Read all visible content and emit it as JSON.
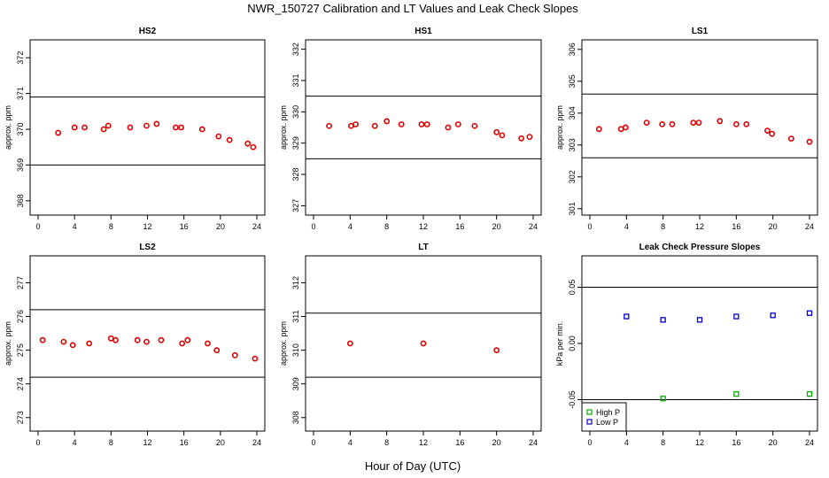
{
  "figure": {
    "title": "NWR_150727  Calibration and LT Values and Leak Check Slopes",
    "xlabel": "Hour of Day (UTC)",
    "point_color": "#e00000",
    "high_color": "#00b000",
    "low_color": "#0000d0"
  },
  "chart_data": [
    {
      "type": "scatter",
      "title": "HS2",
      "ylabel": "approx. ppm",
      "xlim": [
        0,
        24
      ],
      "ylim": [
        367.6,
        372.5
      ],
      "xticks": [
        0,
        4,
        8,
        12,
        16,
        20,
        24
      ],
      "yticks": [
        368,
        369,
        370,
        371,
        372
      ],
      "hlines": [
        369.0,
        370.9
      ],
      "series": [
        {
          "marker": "circle",
          "x": [
            2.2,
            4.0,
            5.1,
            7.2,
            7.7,
            10.1,
            11.9,
            13.0,
            15.1,
            15.7,
            18.0,
            19.8,
            21.0,
            23.0,
            23.6
          ],
          "y": [
            369.9,
            370.05,
            370.05,
            370.0,
            370.1,
            370.05,
            370.1,
            370.15,
            370.05,
            370.05,
            370.0,
            369.8,
            369.7,
            369.6,
            369.5
          ]
        }
      ]
    },
    {
      "type": "scatter",
      "title": "HS1",
      "ylabel": "approx. ppm",
      "xlim": [
        0,
        24
      ],
      "ylim": [
        326.7,
        332.3
      ],
      "xticks": [
        0,
        4,
        8,
        12,
        16,
        20,
        24
      ],
      "yticks": [
        327,
        328,
        329,
        330,
        331,
        332
      ],
      "hlines": [
        328.5,
        330.5
      ],
      "series": [
        {
          "marker": "circle",
          "x": [
            1.7,
            4.1,
            4.6,
            6.7,
            8.0,
            9.6,
            11.8,
            12.4,
            14.7,
            15.8,
            17.6,
            20.0,
            20.6,
            22.7,
            23.6
          ],
          "y": [
            329.55,
            329.55,
            329.6,
            329.55,
            329.7,
            329.6,
            329.6,
            329.6,
            329.5,
            329.6,
            329.55,
            329.35,
            329.25,
            329.15,
            329.2
          ]
        }
      ]
    },
    {
      "type": "scatter",
      "title": "LS1",
      "ylabel": "approx. ppm",
      "xlim": [
        0,
        24
      ],
      "ylim": [
        300.8,
        306.3
      ],
      "xticks": [
        0,
        4,
        8,
        12,
        16,
        20,
        24
      ],
      "yticks": [
        301,
        302,
        303,
        304,
        305,
        306
      ],
      "hlines": [
        302.6,
        304.6
      ],
      "series": [
        {
          "marker": "circle",
          "x": [
            1.0,
            3.4,
            3.9,
            6.2,
            7.9,
            9.0,
            11.3,
            11.9,
            14.2,
            16.0,
            17.1,
            19.4,
            19.9,
            22.0,
            24.0
          ],
          "y": [
            303.5,
            303.5,
            303.55,
            303.7,
            303.65,
            303.65,
            303.7,
            303.7,
            303.75,
            303.65,
            303.65,
            303.45,
            303.35,
            303.2,
            303.1
          ]
        }
      ]
    },
    {
      "type": "scatter",
      "title": "LS2",
      "ylabel": "approx. ppm",
      "xlim": [
        0,
        24
      ],
      "ylim": [
        272.6,
        277.8
      ],
      "xticks": [
        0,
        4,
        8,
        12,
        16,
        20,
        24
      ],
      "yticks": [
        273,
        274,
        275,
        276,
        277
      ],
      "hlines": [
        274.2,
        276.2
      ],
      "series": [
        {
          "marker": "circle",
          "x": [
            0.5,
            2.8,
            3.8,
            5.6,
            8.0,
            8.5,
            10.9,
            11.9,
            13.5,
            15.8,
            16.4,
            18.6,
            19.6,
            21.6,
            23.8
          ],
          "y": [
            275.3,
            275.25,
            275.15,
            275.2,
            275.35,
            275.3,
            275.3,
            275.25,
            275.3,
            275.2,
            275.3,
            275.2,
            275.0,
            274.85,
            274.75
          ]
        }
      ]
    },
    {
      "type": "scatter",
      "title": "LT",
      "ylabel": "approx. ppm",
      "xlim": [
        0,
        24
      ],
      "ylim": [
        307.6,
        312.8
      ],
      "xticks": [
        0,
        4,
        8,
        12,
        16,
        20,
        24
      ],
      "yticks": [
        308,
        309,
        310,
        311,
        312
      ],
      "hlines": [
        309.2,
        311.1
      ],
      "series": [
        {
          "marker": "circle",
          "x": [
            4,
            12,
            20
          ],
          "y": [
            310.2,
            310.2,
            310.0
          ]
        }
      ]
    },
    {
      "type": "scatter",
      "title": "Leak Check Pressure Slopes",
      "ylabel": "kPa per min.",
      "xlim": [
        0,
        24
      ],
      "ylim": [
        -0.078,
        0.078
      ],
      "xticks": [
        0,
        4,
        8,
        12,
        16,
        20,
        24
      ],
      "yticks": [
        -0.05,
        0.0,
        0.05
      ],
      "ytick_labels": [
        "-0.05",
        "0.00",
        "0.05"
      ],
      "hlines": [
        0.05,
        -0.05
      ],
      "legend": {
        "position": "bottom-left",
        "entries": [
          "High P",
          "Low P"
        ]
      },
      "series": [
        {
          "name": "High P",
          "marker": "square",
          "x": [
            8,
            16,
            24
          ],
          "y": [
            -0.049,
            -0.045,
            -0.045
          ]
        },
        {
          "name": "Low P",
          "marker": "square",
          "x": [
            4,
            8,
            12,
            16,
            20,
            24
          ],
          "y": [
            0.024,
            0.021,
            0.021,
            0.024,
            0.025,
            0.027
          ]
        }
      ]
    }
  ]
}
